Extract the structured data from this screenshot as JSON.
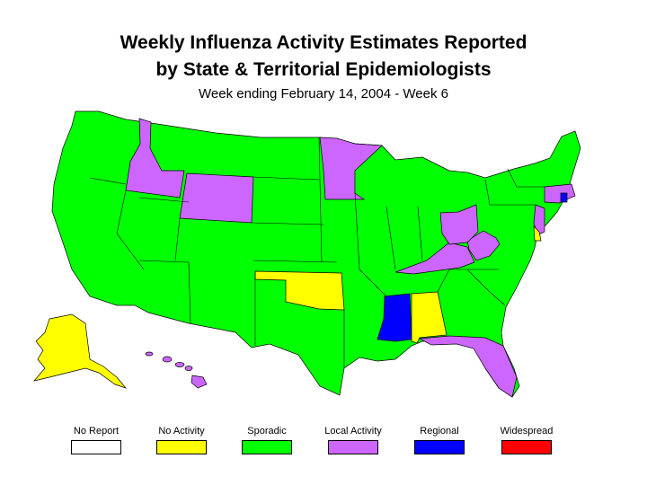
{
  "title_line1": "Weekly Influenza Activity Estimates Reported",
  "title_line2": "by State & Territorial Epidemiologists",
  "subtitle": "Week ending February 14, 2004 - Week 6",
  "legend": [
    {
      "label": "No Report",
      "color": "#ffffff"
    },
    {
      "label": "No Activity",
      "color": "#ffff00"
    },
    {
      "label": "Sporadic",
      "color": "#00ff00"
    },
    {
      "label": "Local Activity",
      "color": "#cc66ff"
    },
    {
      "label": "Regional",
      "color": "#0000ff"
    },
    {
      "label": "Widespread",
      "color": "#ff0000"
    }
  ],
  "activity_levels": {
    "no_activity": [
      "Oklahoma",
      "Alabama",
      "Delaware",
      "Alaska"
    ],
    "local_activity": [
      "Idaho",
      "Wyoming",
      "Minnesota",
      "Ohio",
      "West Virginia",
      "Kentucky",
      "Florida",
      "Hawaii",
      "Massachusetts",
      "New Jersey"
    ],
    "regional": [
      "Mississippi",
      "Rhode Island"
    ],
    "sporadic": "all other states"
  }
}
